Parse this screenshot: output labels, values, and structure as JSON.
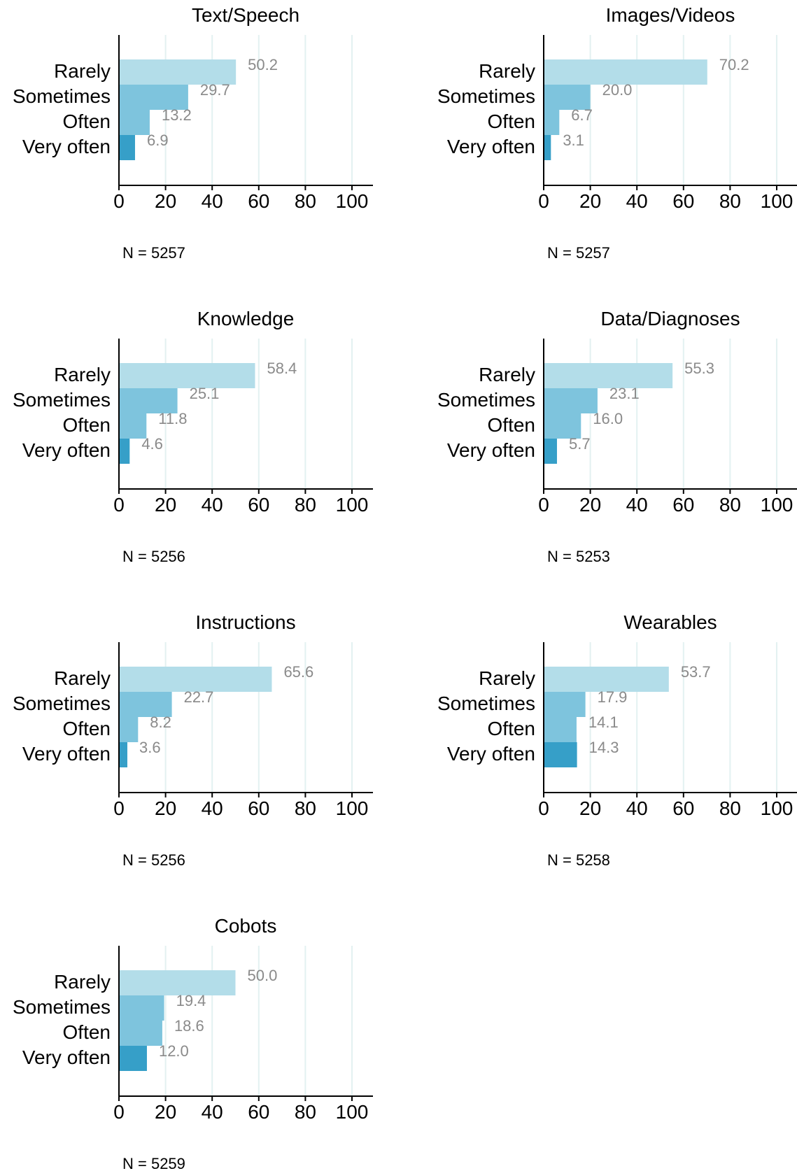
{
  "colors": {
    "rarely": "#b3dde9",
    "sometimes": "#7ec4dd",
    "often": "#7ec4dd",
    "very_often": "#369fc8",
    "grid": "#e3f1f1",
    "axis": "#000000",
    "value_label": "#8a8a8a"
  },
  "chart_data": [
    {
      "type": "bar",
      "orientation": "horizontal",
      "title": "Text/Speech",
      "categories": [
        "Rarely",
        "Sometimes",
        "Often",
        "Very often"
      ],
      "values": [
        50.2,
        29.7,
        13.2,
        6.9
      ],
      "value_labels": [
        "50.2",
        "29.7",
        "13.2",
        "6.9"
      ],
      "xlim": [
        0,
        100
      ],
      "xticks": [
        "0",
        "20",
        "40",
        "60",
        "80",
        "100"
      ],
      "note": "N = 5257",
      "grid": true
    },
    {
      "type": "bar",
      "orientation": "horizontal",
      "title": "Images/Videos",
      "categories": [
        "Rarely",
        "Sometimes",
        "Often",
        "Very often"
      ],
      "values": [
        70.2,
        20.0,
        6.7,
        3.1
      ],
      "value_labels": [
        "70.2",
        "20.0",
        "6.7",
        "3.1"
      ],
      "xlim": [
        0,
        100
      ],
      "xticks": [
        "0",
        "20",
        "40",
        "60",
        "80",
        "100"
      ],
      "note": "N = 5257",
      "grid": true
    },
    {
      "type": "bar",
      "orientation": "horizontal",
      "title": "Knowledge",
      "categories": [
        "Rarely",
        "Sometimes",
        "Often",
        "Very often"
      ],
      "values": [
        58.4,
        25.1,
        11.8,
        4.6
      ],
      "value_labels": [
        "58.4",
        "25.1",
        "11.8",
        "4.6"
      ],
      "xlim": [
        0,
        100
      ],
      "xticks": [
        "0",
        "20",
        "40",
        "60",
        "80",
        "100"
      ],
      "note": "N = 5256",
      "grid": true
    },
    {
      "type": "bar",
      "orientation": "horizontal",
      "title": "Data/Diagnoses",
      "categories": [
        "Rarely",
        "Sometimes",
        "Often",
        "Very often"
      ],
      "values": [
        55.3,
        23.1,
        16.0,
        5.7
      ],
      "value_labels": [
        "55.3",
        "23.1",
        "16.0",
        "5.7"
      ],
      "xlim": [
        0,
        100
      ],
      "xticks": [
        "0",
        "20",
        "40",
        "60",
        "80",
        "100"
      ],
      "note": "N = 5253",
      "grid": true
    },
    {
      "type": "bar",
      "orientation": "horizontal",
      "title": "Instructions",
      "categories": [
        "Rarely",
        "Sometimes",
        "Often",
        "Very often"
      ],
      "values": [
        65.6,
        22.7,
        8.2,
        3.6
      ],
      "value_labels": [
        "65.6",
        "22.7",
        "8.2",
        "3.6"
      ],
      "xlim": [
        0,
        100
      ],
      "xticks": [
        "0",
        "20",
        "40",
        "60",
        "80",
        "100"
      ],
      "note": "N = 5256",
      "grid": true
    },
    {
      "type": "bar",
      "orientation": "horizontal",
      "title": "Wearables",
      "categories": [
        "Rarely",
        "Sometimes",
        "Often",
        "Very often"
      ],
      "values": [
        53.7,
        17.9,
        14.1,
        14.3
      ],
      "value_labels": [
        "53.7",
        "17.9",
        "14.1",
        "14.3"
      ],
      "xlim": [
        0,
        100
      ],
      "xticks": [
        "0",
        "20",
        "40",
        "60",
        "80",
        "100"
      ],
      "note": "N = 5258",
      "grid": true
    },
    {
      "type": "bar",
      "orientation": "horizontal",
      "title": "Cobots",
      "categories": [
        "Rarely",
        "Sometimes",
        "Often",
        "Very often"
      ],
      "values": [
        50.0,
        19.4,
        18.6,
        12.0
      ],
      "value_labels": [
        "50.0",
        "19.4",
        "18.6",
        "12.0"
      ],
      "xlim": [
        0,
        100
      ],
      "xticks": [
        "0",
        "20",
        "40",
        "60",
        "80",
        "100"
      ],
      "note": "N = 5259",
      "grid": true
    }
  ]
}
